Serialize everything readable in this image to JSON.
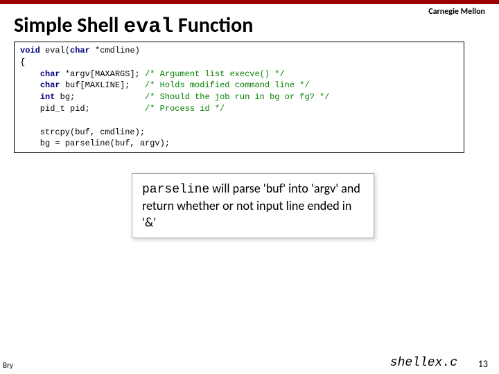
{
  "university": "Carnegie Mellon",
  "title_pre": "Simple Shell ",
  "title_mono": "eval",
  "title_post": " Function",
  "code": {
    "l1a": "void",
    "l1b": " eval(",
    "l1c": "char",
    "l1d": " *cmdline)",
    "l2": "{",
    "l3a": "    ",
    "l3b": "char",
    "l3c": " *argv[MAXARGS]; ",
    "l3d": "/* Argument list execve() */",
    "l4a": "    ",
    "l4b": "char",
    "l4c": " buf[MAXLINE];   ",
    "l4d": "/* Holds modified command line */",
    "l5a": "    ",
    "l5b": "int",
    "l5c": " bg;              ",
    "l5d": "/* Should the job run in bg or fg? */",
    "l6a": "    pid_t pid;           ",
    "l6d": "/* Process id */",
    "l7": "",
    "l8": "    strcpy(buf, cmdline);",
    "l9": "    bg = parseline(buf, argv);"
  },
  "callout_mono": "parseline",
  "callout_rest": " will parse 'buf' into 'argv' and return whether or not input line ended in '&'",
  "footer_left": "Bry",
  "footer_file": "shellex.c",
  "footer_page": "13"
}
